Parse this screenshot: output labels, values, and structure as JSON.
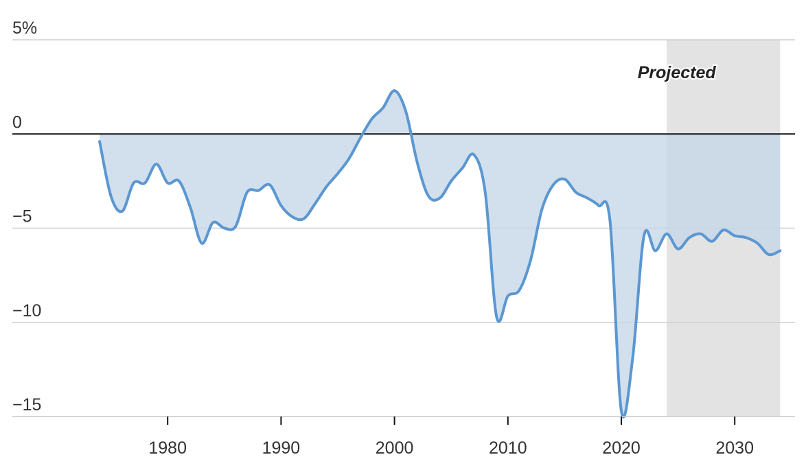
{
  "colors": {
    "line": "#5b97d1",
    "area": "#c5d6e8",
    "projected_band": "#e3e3e3",
    "zero_line": "#111111",
    "grid": "#cfcfcf"
  },
  "chart_data": {
    "type": "area",
    "title": "",
    "xlabel": "",
    "ylabel": "",
    "ylim": [
      -15,
      5
    ],
    "xlim": [
      1974,
      2034
    ],
    "y_ticks": [
      {
        "value": 5,
        "label": "5%"
      },
      {
        "value": 0,
        "label": "0"
      },
      {
        "value": -5,
        "label": "−5"
      },
      {
        "value": -10,
        "label": "−10"
      },
      {
        "value": -15,
        "label": "−15"
      }
    ],
    "x_ticks": [
      {
        "value": 1980,
        "label": "1980"
      },
      {
        "value": 1990,
        "label": "1990"
      },
      {
        "value": 2000,
        "label": "2000"
      },
      {
        "value": 2010,
        "label": "2010"
      },
      {
        "value": 2020,
        "label": "2020"
      },
      {
        "value": 2030,
        "label": "2030"
      }
    ],
    "grid": true,
    "projection": {
      "label": "Projected",
      "start": 2024,
      "end": 2034
    },
    "series": [
      {
        "x": [
          1974,
          1975,
          1976,
          1977,
          1978,
          1979,
          1980,
          1981,
          1982,
          1983,
          1984,
          1985,
          1986,
          1987,
          1988,
          1989,
          1990,
          1991,
          1992,
          1993,
          1994,
          1995,
          1996,
          1997,
          1998,
          1999,
          2000,
          2001,
          2002,
          2003,
          2004,
          2005,
          2006,
          2007,
          2008,
          2009,
          2010,
          2011,
          2012,
          2013,
          2014,
          2015,
          2016,
          2017,
          2018,
          2019,
          2020,
          2021,
          2022,
          2023,
          2024,
          2025,
          2026,
          2027,
          2028,
          2029,
          2030,
          2031,
          2032,
          2033,
          2034
        ],
        "values": [
          -0.4,
          -3.3,
          -4.1,
          -2.6,
          -2.6,
          -1.6,
          -2.6,
          -2.5,
          -3.9,
          -5.8,
          -4.7,
          -5.0,
          -4.9,
          -3.1,
          -3.0,
          -2.7,
          -3.8,
          -4.4,
          -4.5,
          -3.7,
          -2.8,
          -2.1,
          -1.3,
          -0.2,
          0.8,
          1.4,
          2.3,
          1.2,
          -1.5,
          -3.3,
          -3.4,
          -2.5,
          -1.8,
          -1.1,
          -3.1,
          -9.7,
          -8.6,
          -8.3,
          -6.7,
          -4.0,
          -2.7,
          -2.4,
          -3.1,
          -3.4,
          -3.8,
          -4.6,
          -14.7,
          -11.9,
          -5.4,
          -6.2,
          -5.3,
          -6.1,
          -5.5,
          -5.3,
          -5.7,
          -5.1,
          -5.4,
          -5.5,
          -5.8,
          -6.4,
          -6.2
        ]
      }
    ]
  }
}
